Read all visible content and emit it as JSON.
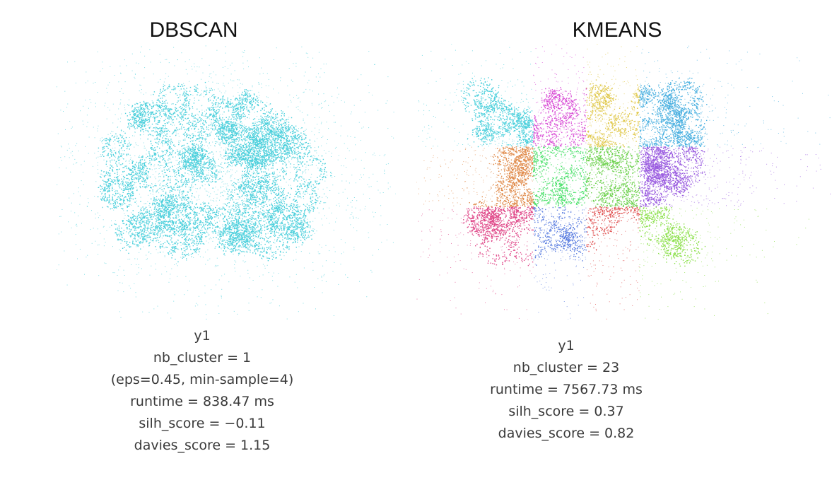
{
  "chart_data": [
    {
      "type": "scatter",
      "title": "DBSCAN",
      "series": [
        {
          "color": "#4dd0dc"
        }
      ],
      "stats": {
        "name": "y1",
        "nb_cluster": "nb_cluster = 1",
        "params": "(eps=0.45, min-sample=4)",
        "runtime": "runtime = 838.47 ms",
        "silh_score": "silh_score = −0.11",
        "davies_score": "davies_score = 1.15"
      }
    },
    {
      "type": "scatter",
      "title": "KMEANS",
      "series": [
        {
          "color": "#4dd0dc"
        },
        {
          "color": "#5a7de0"
        },
        {
          "color": "#9b5de0"
        },
        {
          "color": "#d94fd6"
        },
        {
          "color": "#e05050"
        },
        {
          "color": "#e08a4a"
        },
        {
          "color": "#e0c84a"
        },
        {
          "color": "#8be04a"
        },
        {
          "color": "#4ae06a"
        },
        {
          "color": "#4ab0e0"
        },
        {
          "color": "#e04a8a"
        },
        {
          "color": "#6ad04a"
        }
      ],
      "stats": {
        "name": "y1",
        "nb_cluster": "nb_cluster = 23",
        "runtime": "runtime = 7567.73 ms",
        "silh_score": "silh_score = 0.37",
        "davies_score": "davies_score = 0.82"
      }
    }
  ]
}
